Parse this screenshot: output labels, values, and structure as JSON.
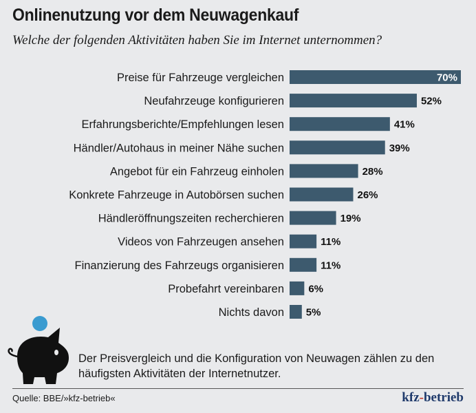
{
  "title": "Onlinenutzung vor dem Neuwagenkauf",
  "subtitle": "Welche der folgenden Aktivitäten haben Sie im Internet unternommen?",
  "chart_data": {
    "type": "bar",
    "orientation": "horizontal",
    "categories": [
      "Preise für Fahrzeuge vergleichen",
      "Neufahrzeuge konfigurieren",
      "Erfahrungsberichte/Empfehlungen lesen",
      "Händler/Autohaus in meiner Nähe suchen",
      "Angebot für ein Fahrzeug einholen",
      "Konkrete Fahrzeuge in Autobörsen suchen",
      "Händleröffnungszeiten recherchieren",
      "Videos von Fahrzeugen ansehen",
      "Finanzierung des Fahrzeugs organisieren",
      "Probefahrt vereinbaren",
      "Nichts davon"
    ],
    "values": [
      70,
      52,
      41,
      39,
      28,
      26,
      19,
      11,
      11,
      6,
      5
    ],
    "labels": [
      "70%",
      "52%",
      "41%",
      "39%",
      "28%",
      "26%",
      "19%",
      "11%",
      "11%",
      "6%",
      "5%"
    ],
    "unit": "%",
    "bar_color": "#3d5a6e",
    "grid": false
  },
  "note": "Der Preisvergleich und die Konfiguration von Neuwagen zählen zu den häufigsten Aktivitäten der Internetnutzer.",
  "source": "Quelle: BBE/»kfz-betrieb«",
  "logo": {
    "part1": "kfz",
    "dash": "-",
    "part2": "betrieb"
  },
  "icons": {
    "piggy_bank": "piggy-bank-icon",
    "coin_color": "#3a9bd0"
  }
}
